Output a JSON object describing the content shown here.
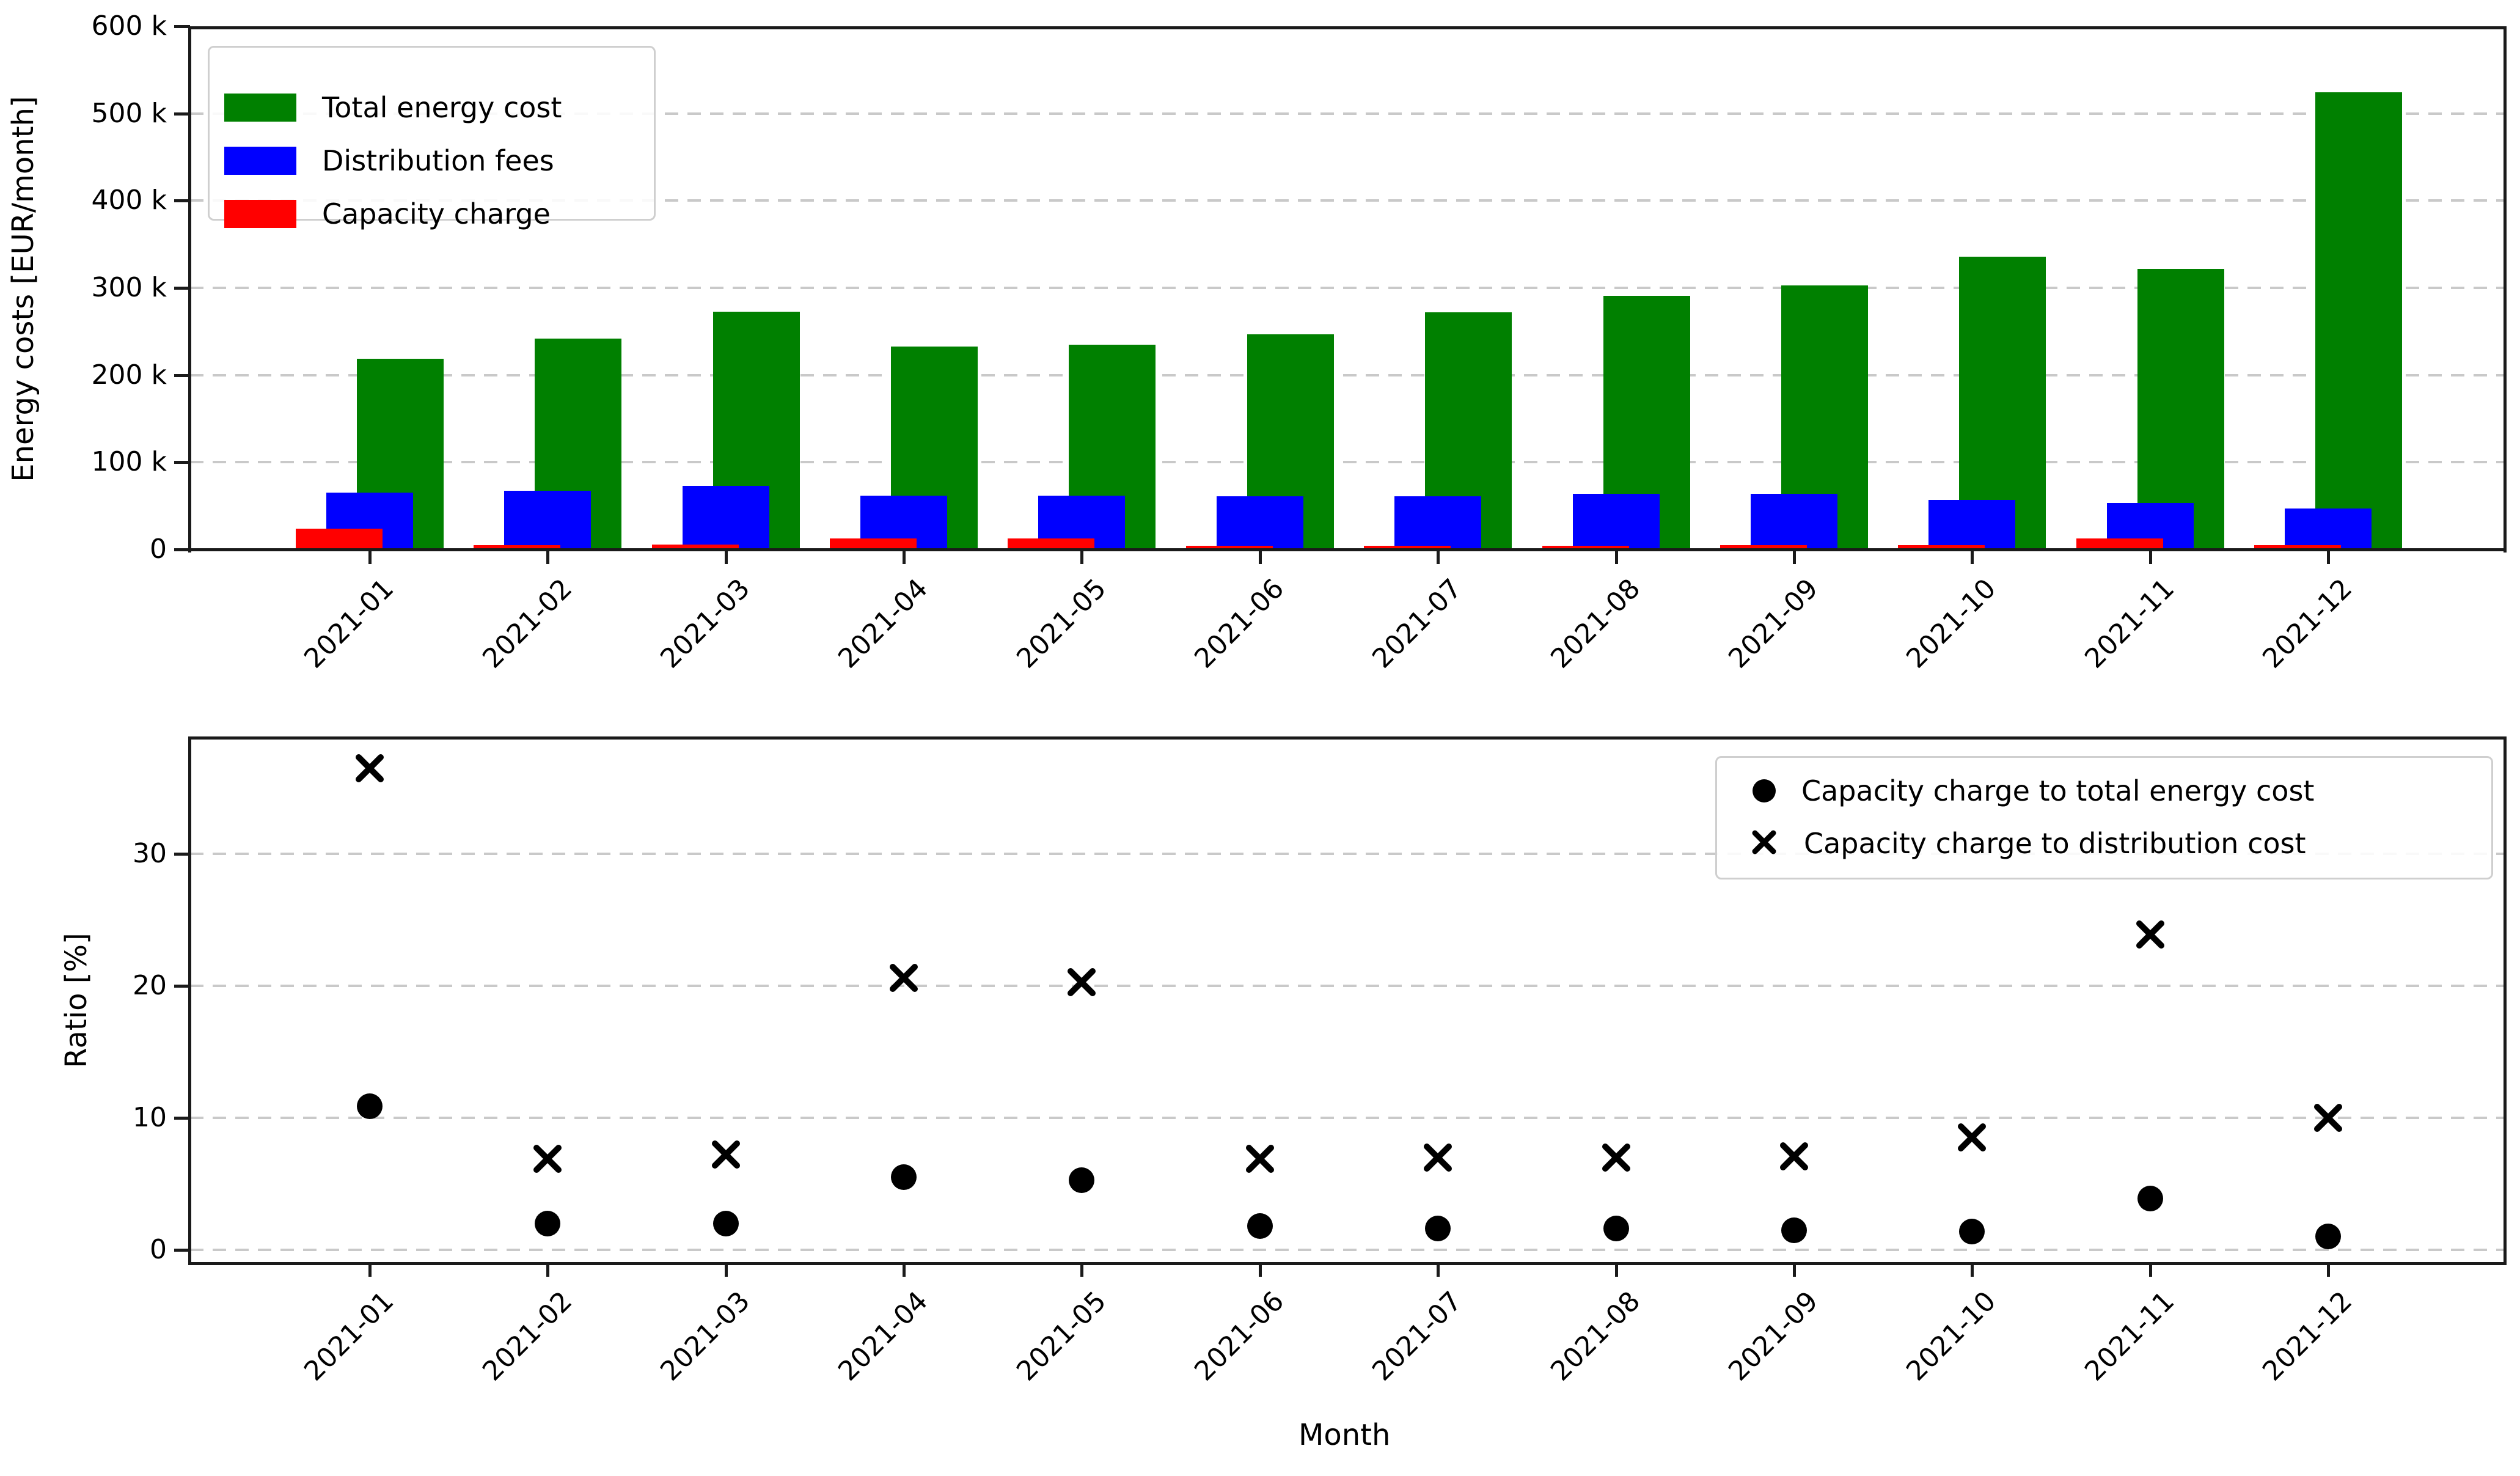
{
  "figure": {
    "background": "#ffffff"
  },
  "chart_data": [
    {
      "id": "energy-costs",
      "type": "bar",
      "title": "",
      "xlabel": "",
      "ylabel": "Energy costs [EUR/month]",
      "categories": [
        "2021-01",
        "2021-02",
        "2021-03",
        "2021-04",
        "2021-05",
        "2021-06",
        "2021-07",
        "2021-08",
        "2021-09",
        "2021-10",
        "2021-11",
        "2021-12"
      ],
      "series": [
        {
          "name": "Total energy cost",
          "color": "#008000",
          "values": [
            219000,
            242000,
            273000,
            233000,
            235000,
            247000,
            272000,
            291000,
            303000,
            336000,
            322000,
            524000
          ]
        },
        {
          "name": "Distribution fees",
          "color": "#0000ff",
          "values": [
            65000,
            67000,
            73000,
            62000,
            62000,
            61000,
            61000,
            64000,
            64000,
            57000,
            53000,
            47000
          ]
        },
        {
          "name": "Capacity charge",
          "color": "#ff0000",
          "values": [
            24000,
            4600,
            5300,
            12800,
            12600,
            4200,
            4300,
            4500,
            4600,
            4800,
            12800,
            4700
          ]
        }
      ],
      "ylim": [
        0,
        600000
      ],
      "ytick_values": [
        0,
        100000,
        200000,
        300000,
        400000,
        500000,
        600000
      ],
      "ytick_labels": [
        "0",
        "100 k",
        "200 k",
        "300 k",
        "400 k",
        "500 k",
        "600 k"
      ],
      "grid": "horizontal dashed",
      "legend_position": "upper left",
      "units": "EUR/month"
    },
    {
      "id": "ratios",
      "type": "scatter",
      "title": "",
      "xlabel": "Month",
      "ylabel": "Ratio [%]",
      "categories": [
        "2021-01",
        "2021-02",
        "2021-03",
        "2021-04",
        "2021-05",
        "2021-06",
        "2021-07",
        "2021-08",
        "2021-09",
        "2021-10",
        "2021-11",
        "2021-12"
      ],
      "series": [
        {
          "name": "Capacity charge to total energy cost",
          "marker": "circle",
          "color": "#000000",
          "values": [
            10.9,
            2.0,
            2.0,
            5.5,
            5.3,
            1.8,
            1.6,
            1.6,
            1.5,
            1.4,
            3.9,
            1.0
          ]
        },
        {
          "name": "Capacity charge to distribution cost",
          "marker": "x",
          "color": "#000000",
          "values": [
            36.5,
            6.9,
            7.2,
            20.6,
            20.3,
            6.9,
            7.0,
            7.0,
            7.1,
            8.5,
            23.9,
            10.0
          ]
        }
      ],
      "ylim": [
        -1,
        39
      ],
      "ytick_values": [
        0,
        10,
        20,
        30
      ],
      "ytick_labels": [
        "0",
        "10",
        "20",
        "30"
      ],
      "grid": "horizontal dashed",
      "legend_position": "upper right",
      "units": "%"
    }
  ]
}
